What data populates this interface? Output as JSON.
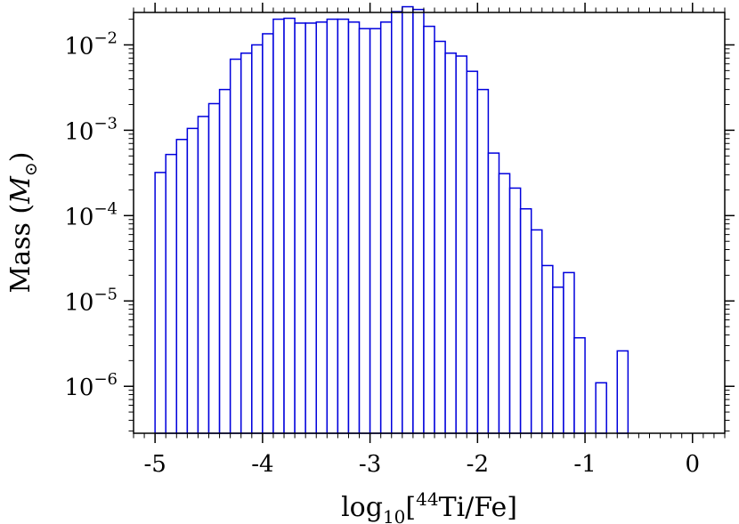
{
  "chart_data": {
    "type": "bar",
    "histogram": true,
    "xlabel": {
      "prefix": "log",
      "sub": "10",
      "open": "[",
      "sup": "44",
      "rest": "Ti/Fe]"
    },
    "ylabel": {
      "text": "Mass (",
      "sym": "M",
      "sub": "⊙",
      "close": ")"
    },
    "xlim": [
      -5.2,
      0.3
    ],
    "ylim_log10": [
      -6.55,
      -1.62
    ],
    "yscale": "log",
    "xticks": [
      -5,
      -4,
      -3,
      -2,
      -1,
      0
    ],
    "xtick_labels": [
      "-5",
      "-4",
      "-3",
      "-2",
      "-1",
      "0"
    ],
    "yticks_exp": [
      -6,
      -5,
      -4,
      -3,
      -2
    ],
    "ytick_base": "10",
    "ytick_sups": [
      "−6",
      "−5",
      "−4",
      "−3",
      "−2"
    ],
    "bin_width": 0.1,
    "bin_left_edges": [
      -5.0,
      -4.9,
      -4.8,
      -4.7,
      -4.6,
      -4.5,
      -4.4,
      -4.3,
      -4.2,
      -4.1,
      -4.0,
      -3.9,
      -3.8,
      -3.7,
      -3.6,
      -3.5,
      -3.4,
      -3.3,
      -3.2,
      -3.1,
      -3.0,
      -2.9,
      -2.8,
      -2.7,
      -2.6,
      -2.5,
      -2.4,
      -2.3,
      -2.2,
      -2.1,
      -2.0,
      -1.9,
      -1.8,
      -1.7,
      -1.6,
      -1.5,
      -1.4,
      -1.3,
      -1.2,
      -1.1,
      -1.0,
      -0.9,
      -0.8,
      -0.7
    ],
    "values": [
      0.00032,
      0.00052,
      0.00078,
      0.00105,
      0.00145,
      0.00205,
      0.003,
      0.0068,
      0.008,
      0.01,
      0.0135,
      0.02,
      0.0205,
      0.018,
      0.018,
      0.0185,
      0.02,
      0.02,
      0.0185,
      0.0155,
      0.0155,
      0.0185,
      0.0245,
      0.028,
      0.026,
      0.0165,
      0.011,
      0.008,
      0.0074,
      0.0049,
      0.003,
      0.00054,
      0.00031,
      0.00021,
      0.00012,
      6.8e-05,
      2.6e-05,
      1.45e-05,
      2.15e-05,
      3.7e-06,
      0,
      1.1e-06,
      0,
      2.6e-06
    ],
    "bar_color": "#0000dd",
    "bar_fill": "#ffffff",
    "grid": false,
    "legend": "none",
    "title": ""
  }
}
